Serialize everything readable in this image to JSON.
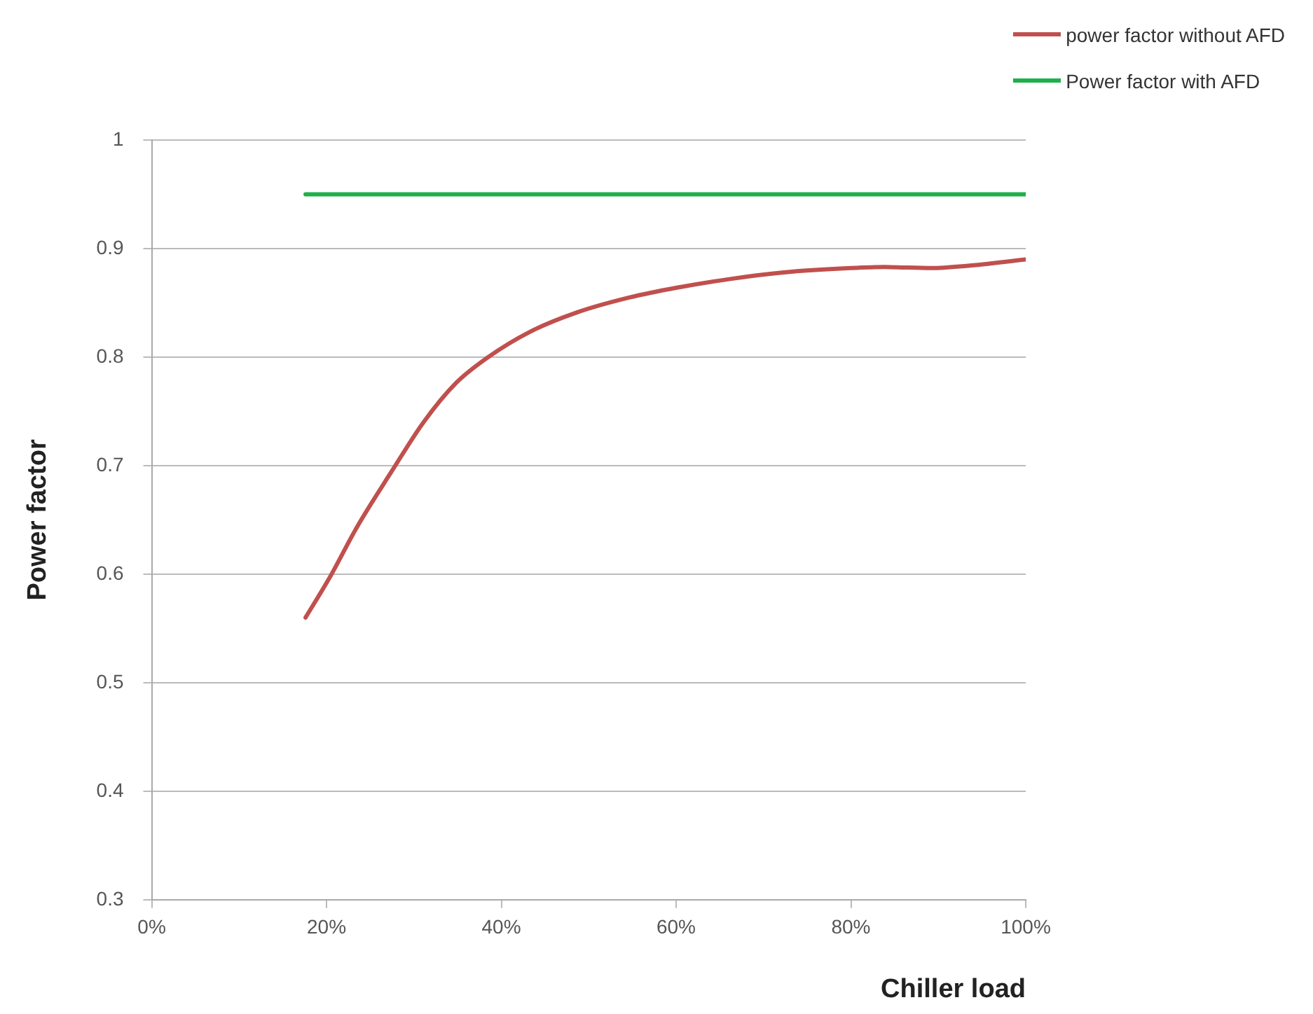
{
  "chart_data": {
    "type": "line",
    "xlabel": "Chiller load",
    "ylabel": "Power factor",
    "xlim": [
      0,
      100
    ],
    "xticks": [
      {
        "value": 0,
        "label": "0%"
      },
      {
        "value": 20,
        "label": "20%"
      },
      {
        "value": 40,
        "label": "40%"
      },
      {
        "value": 60,
        "label": "60%"
      },
      {
        "value": 80,
        "label": "80%"
      },
      {
        "value": 100,
        "label": "100%"
      }
    ],
    "ylim": [
      0.3,
      1
    ],
    "yticks": [
      0.3,
      0.4,
      0.5,
      0.6,
      0.7,
      0.8,
      0.9,
      1
    ],
    "grid": "y",
    "legend": "top right",
    "marker": "none",
    "line_style": "solid",
    "series": [
      {
        "name": "power factor without AFD",
        "color": "#c0504d",
        "x": [
          17.6,
          20.3,
          23.6,
          27.4,
          31.1,
          34.8,
          38.5,
          43.2,
          48.6,
          54.7,
          60.1,
          66.2,
          72.3,
          80,
          83.8,
          89.2,
          93.2,
          100
        ],
        "values": [
          0.56,
          0.596,
          0.645,
          0.694,
          0.74,
          0.776,
          0.8,
          0.823,
          0.841,
          0.855,
          0.864,
          0.872,
          0.878,
          0.882,
          0.883,
          0.882,
          0.884,
          0.89
        ]
      },
      {
        "name": "Power factor with AFD",
        "color": "#1eb04a",
        "x": [
          17.6,
          100
        ],
        "values": [
          0.95,
          0.95
        ]
      }
    ]
  }
}
